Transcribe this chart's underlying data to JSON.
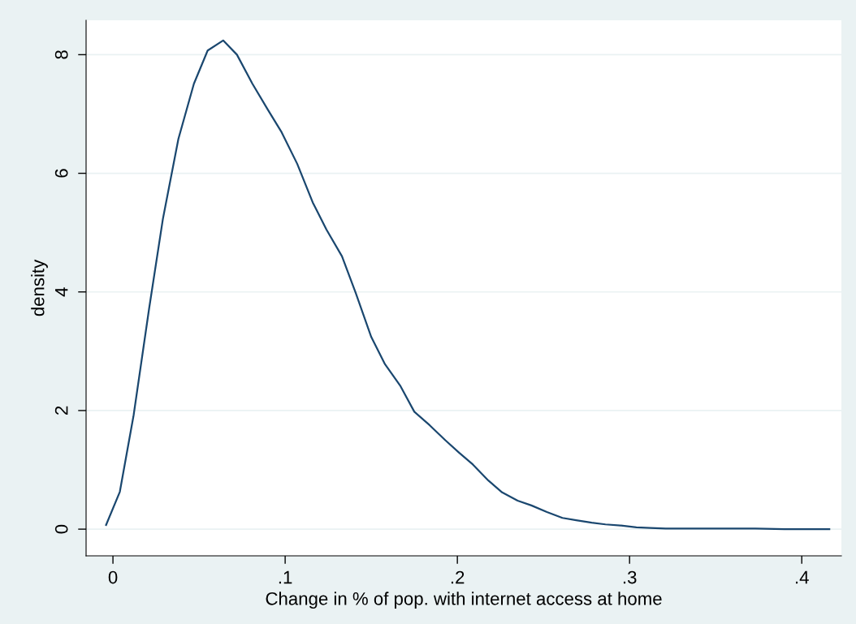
{
  "chart_data": {
    "type": "line",
    "xlabel": "Change in % of pop. with internet access at home",
    "ylabel": "density",
    "x": [
      -0.004,
      0.004,
      0.012,
      0.021,
      0.029,
      0.038,
      0.047,
      0.055,
      0.064,
      0.072,
      0.081,
      0.09,
      0.098,
      0.107,
      0.116,
      0.124,
      0.133,
      0.141,
      0.15,
      0.158,
      0.167,
      0.175,
      0.184,
      0.193,
      0.201,
      0.209,
      0.218,
      0.226,
      0.235,
      0.243,
      0.252,
      0.261,
      0.269,
      0.278,
      0.286,
      0.295,
      0.304,
      0.312,
      0.321,
      0.338,
      0.356,
      0.373,
      0.39,
      0.416
    ],
    "series": [
      {
        "color": "#1a476f",
        "values": [
          0.07,
          0.63,
          1.92,
          3.72,
          5.23,
          6.58,
          7.51,
          8.07,
          8.24,
          8.0,
          7.51,
          7.07,
          6.69,
          6.16,
          5.51,
          5.05,
          4.6,
          3.98,
          3.24,
          2.78,
          2.41,
          1.98,
          1.75,
          1.5,
          1.29,
          1.09,
          0.82,
          0.62,
          0.48,
          0.4,
          0.29,
          0.19,
          0.15,
          0.11,
          0.08,
          0.06,
          0.03,
          0.02,
          0.01,
          0.01,
          0.01,
          0.01,
          0.0,
          0.0
        ]
      }
    ],
    "xlim": [
      -0.0156,
      0.423
    ],
    "ylim": [
      -0.45,
      8.58
    ],
    "xticks": [
      0,
      {
        "value": 0.1,
        "label": ".1"
      },
      {
        "value": 0.2,
        "label": ".2"
      },
      {
        "value": 0.3,
        "label": ".3"
      },
      {
        "value": 0.4,
        "label": ".4"
      }
    ],
    "yticks": [
      0,
      2,
      4,
      6,
      8
    ],
    "grid": "y",
    "legend": false,
    "marker": "none",
    "line_style": "solid"
  }
}
